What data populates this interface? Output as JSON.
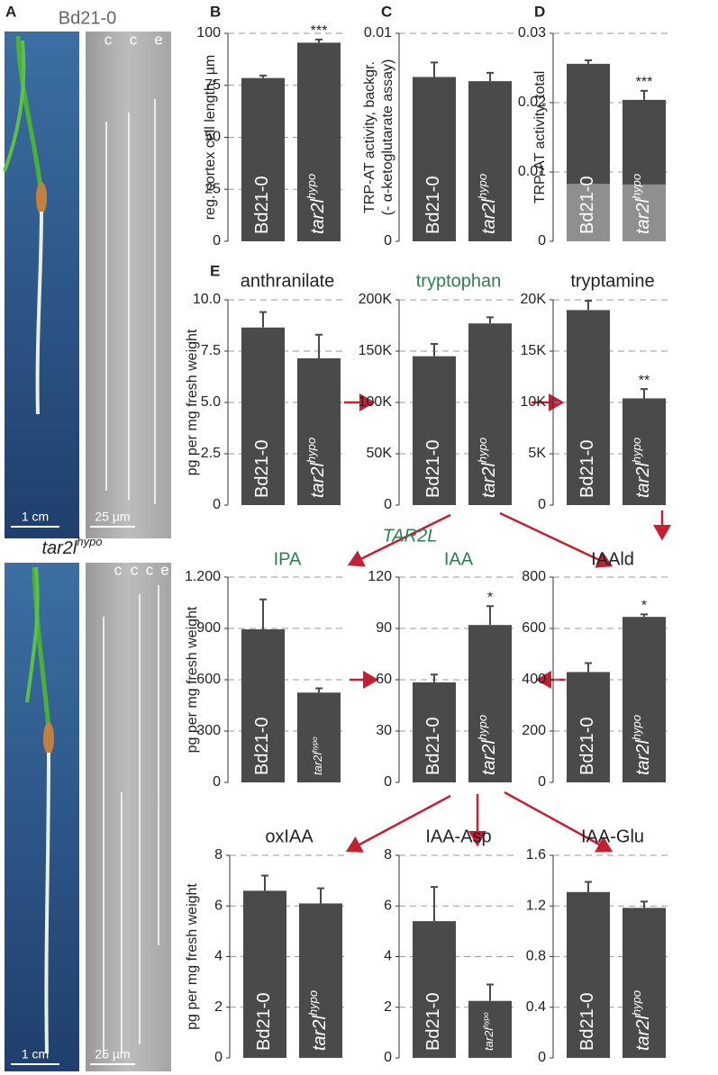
{
  "panel_labels": [
    "A",
    "B",
    "C",
    "D",
    "E"
  ],
  "panel_a": {
    "genotype_top": "Bd21-0",
    "genotype_bottom": "tar2l",
    "genotype_bottom_sup": "hypo",
    "scale_cm": "1 cm",
    "scale_um": "25 µm",
    "cells_top": [
      "c",
      "c",
      "e"
    ],
    "cells_bottom": [
      "c",
      "c",
      "c",
      "e"
    ]
  },
  "pathway_labels": [
    "TAR2L"
  ],
  "chart_data": [
    {
      "type": "bar",
      "y_label": "reg. cortex cell length, µm",
      "categories": [
        "Bd21-0",
        "tar2l"
      ],
      "category_sup": [
        null,
        "hypo"
      ],
      "values": [
        78.5,
        95.5
      ],
      "errors": [
        1.2,
        1.5
      ],
      "annotations": [
        null,
        "***"
      ],
      "color": "#4a4a4a",
      "ylim": [
        0,
        100
      ],
      "yticks": [
        0,
        25,
        50,
        75,
        100
      ],
      "grid": true
    },
    {
      "type": "bar",
      "y_label": [
        "TRP-AT activity, backgr.",
        "(- α-ketoglutarate assay)"
      ],
      "categories": [
        "Bd21-0",
        "tar2l"
      ],
      "category_sup": [
        null,
        "hypo"
      ],
      "values": [
        0.0079,
        0.0077
      ],
      "errors": [
        0.0007,
        0.0004
      ],
      "color": "#4a4a4a",
      "ylim": [
        0,
        0.01
      ],
      "yticks": [
        0,
        0.01
      ],
      "grid": true
    },
    {
      "type": "bar",
      "y_label": "TRP-AT activity, total",
      "categories": [
        "Bd21-0",
        "tar2l"
      ],
      "category_sup": [
        null,
        "hypo"
      ],
      "series": [
        {
          "color": "#4a4a4a",
          "values": [
            0.0256,
            0.0204
          ],
          "errors": [
            0.0005,
            0.0013
          ]
        },
        {
          "color": "#8f8f8f",
          "values": [
            0.0083,
            0.0082
          ]
        }
      ],
      "annotations": [
        null,
        "***"
      ],
      "ylim": [
        0,
        0.03
      ],
      "yticks": [
        0,
        0.01,
        0.02,
        0.03
      ],
      "grid": true
    },
    {
      "type": "bar",
      "title": "anthranilate",
      "y_label": "pg per mg fresh weight",
      "categories": [
        "Bd21-0",
        "tar2l"
      ],
      "category_sup": [
        null,
        "hypo"
      ],
      "values": [
        8.65,
        7.15
      ],
      "errors": [
        0.75,
        1.15
      ],
      "color": "#4a4a4a",
      "ylim": [
        0,
        10
      ],
      "yticks": [
        0,
        2.5,
        {
          "value": 5,
          "label": "5.0"
        },
        7.5,
        {
          "value": 10,
          "label": "10.0"
        }
      ],
      "grid": true
    },
    {
      "type": "bar",
      "title": "tryptophan",
      "title_color": "#2e7d52",
      "categories": [
        "Bd21-0",
        "tar2l"
      ],
      "category_sup": [
        null,
        "hypo"
      ],
      "values": [
        145000,
        177000
      ],
      "errors": [
        12000,
        6000
      ],
      "color": "#4a4a4a",
      "ylim": [
        0,
        200000
      ],
      "yticks": [
        0,
        {
          "value": 50000,
          "label": "50K"
        },
        {
          "value": 100000,
          "label": "100K"
        },
        {
          "value": 150000,
          "label": "150K"
        },
        {
          "value": 200000,
          "label": "200K"
        }
      ],
      "grid": true
    },
    {
      "type": "bar",
      "title": "tryptamine",
      "categories": [
        "Bd21-0",
        "tar2l"
      ],
      "category_sup": [
        null,
        "hypo"
      ],
      "values": [
        19000,
        10400
      ],
      "errors": [
        900,
        900
      ],
      "annotations": [
        null,
        "**"
      ],
      "color": "#4a4a4a",
      "ylim": [
        0,
        20000
      ],
      "yticks": [
        0,
        {
          "value": 5000,
          "label": "5K"
        },
        {
          "value": 10000,
          "label": "10K"
        },
        {
          "value": 15000,
          "label": "15K"
        },
        {
          "value": 20000,
          "label": "20K"
        }
      ],
      "grid": true
    },
    {
      "type": "bar",
      "title": "IPA",
      "title_color": "#2e7d52",
      "y_label": "pg per mg fresh weight",
      "categories": [
        "Bd21-0",
        "tar2l"
      ],
      "category_sup": [
        null,
        "hypo"
      ],
      "values": [
        895,
        525
      ],
      "errors": [
        175,
        25
      ],
      "color": "#4a4a4a",
      "ylim": [
        0,
        1200
      ],
      "yticks": [
        0,
        300,
        600,
        900,
        {
          "value": 1200,
          "label": "1.200"
        }
      ],
      "grid": true
    },
    {
      "type": "bar",
      "title": "IAA",
      "title_color": "#2e7d52",
      "categories": [
        "Bd21-0",
        "tar2l"
      ],
      "category_sup": [
        null,
        "hypo"
      ],
      "values": [
        58.5,
        92
      ],
      "errors": [
        4.5,
        11
      ],
      "annotations": [
        null,
        "*"
      ],
      "color": "#4a4a4a",
      "ylim": [
        0,
        120
      ],
      "yticks": [
        0,
        30,
        60,
        90,
        120
      ],
      "grid": true
    },
    {
      "type": "bar",
      "title": "IAAld",
      "categories": [
        "Bd21-0",
        "tar2l"
      ],
      "category_sup": [
        null,
        "hypo"
      ],
      "values": [
        430,
        645
      ],
      "errors": [
        35,
        10
      ],
      "annotations": [
        null,
        "*"
      ],
      "color": "#4a4a4a",
      "ylim": [
        0,
        800
      ],
      "yticks": [
        0,
        200,
        400,
        600,
        800
      ],
      "grid": true
    },
    {
      "type": "bar",
      "title": "oxIAA",
      "y_label": "pg per mg fresh weight",
      "categories": [
        "Bd21-0",
        "tar2l"
      ],
      "category_sup": [
        null,
        "hypo"
      ],
      "values": [
        6.6,
        6.1
      ],
      "errors": [
        0.6,
        0.6
      ],
      "color": "#4a4a4a",
      "ylim": [
        0,
        8
      ],
      "yticks": [
        0,
        2,
        4,
        6,
        8
      ],
      "grid": true
    },
    {
      "type": "bar",
      "title": "IAA-Asp",
      "categories": [
        "Bd21-0",
        "tar2l"
      ],
      "category_sup": [
        null,
        "hypo"
      ],
      "values": [
        5.4,
        2.25
      ],
      "errors": [
        1.35,
        0.65
      ],
      "color": "#4a4a4a",
      "ylim": [
        0,
        8
      ],
      "yticks": [
        0,
        2,
        4,
        6,
        8
      ],
      "grid": true
    },
    {
      "type": "bar",
      "title": "IAA-Glu",
      "categories": [
        "Bd21-0",
        "tar2l"
      ],
      "category_sup": [
        null,
        "hypo"
      ],
      "values": [
        1.31,
        1.185
      ],
      "errors": [
        0.08,
        0.05
      ],
      "color": "#4a4a4a",
      "ylim": [
        0,
        1.6
      ],
      "yticks": [
        0,
        0.4,
        0.8,
        1.2,
        1.6
      ],
      "grid": true
    }
  ]
}
